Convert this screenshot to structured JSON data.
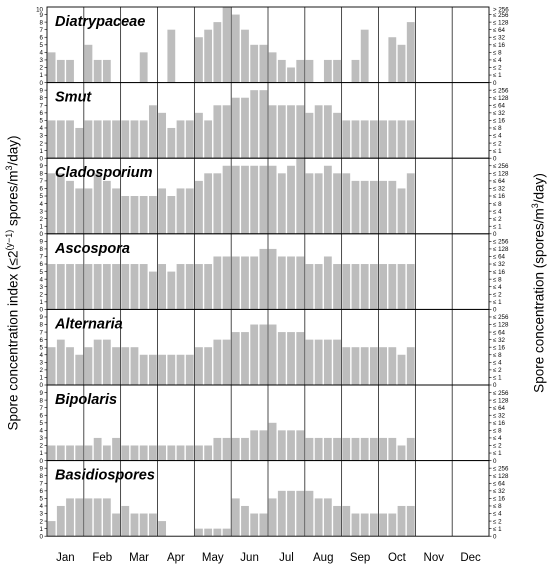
{
  "chart_data": {
    "type": "bar",
    "ylabel_left_parts": [
      "Spore concentration index (≤2",
      "(y−1)",
      " spores/m",
      "3",
      "/day)"
    ],
    "ylabel_right_parts": [
      "Spore concentration (spores/m",
      "3",
      "/day)"
    ],
    "months": [
      "Jan",
      "Feb",
      "Mar",
      "Apr",
      "May",
      "Jun",
      "Jul",
      "Aug",
      "Sep",
      "Oct",
      "Nov",
      "Dec"
    ],
    "left_ticks": [
      "0",
      "1",
      "2",
      "3",
      "4",
      "5",
      "6",
      "7",
      "8",
      "9"
    ],
    "left_tick_top": "10",
    "right_ticks": [
      "0",
      "≤ 1",
      "≤ 2",
      "≤ 4",
      "≤ 8",
      "≤ 16",
      "≤ 32",
      "≤ 64",
      "≤ 128",
      "≤ 256"
    ],
    "right_tick_top": "> 256",
    "ylim": [
      0,
      10
    ],
    "weeks_per_month": 4,
    "panels": [
      {
        "name": "Diatrypaceae",
        "values": [
          4,
          3,
          3,
          0,
          5,
          3,
          3,
          0,
          0,
          0,
          4,
          0,
          0,
          7,
          0,
          0,
          6,
          7,
          8,
          10,
          9,
          7,
          5,
          5,
          4,
          3,
          2,
          3,
          3,
          0,
          3,
          3,
          0,
          3,
          7,
          0,
          0,
          6,
          5,
          8
        ]
      },
      {
        "name": "Smut",
        "values": [
          5,
          5,
          5,
          4,
          5,
          5,
          5,
          5,
          5,
          5,
          5,
          7,
          6,
          4,
          5,
          5,
          6,
          5,
          7,
          7,
          8,
          8,
          9,
          9,
          7,
          7,
          7,
          7,
          6,
          7,
          7,
          6,
          5,
          5,
          5,
          5,
          5,
          5,
          5,
          5
        ]
      },
      {
        "name": "Cladosporium",
        "values": [
          8,
          8,
          7,
          6,
          6,
          8,
          7,
          6,
          5,
          5,
          5,
          5,
          6,
          5,
          6,
          6,
          7,
          8,
          8,
          9,
          9,
          9,
          9,
          9,
          9,
          8,
          9,
          10,
          8,
          8,
          9,
          8,
          8,
          7,
          7,
          7,
          7,
          7,
          6,
          8
        ]
      },
      {
        "name": "Ascospora",
        "values": [
          6,
          6,
          6,
          6,
          6,
          6,
          6,
          6,
          6,
          6,
          6,
          5,
          6,
          5,
          6,
          6,
          6,
          6,
          7,
          7,
          7,
          7,
          7,
          8,
          8,
          7,
          7,
          7,
          6,
          6,
          7,
          6,
          6,
          6,
          6,
          6,
          6,
          6,
          6,
          6
        ]
      },
      {
        "name": "Alternaria",
        "values": [
          5,
          6,
          5,
          4,
          5,
          6,
          6,
          5,
          5,
          5,
          4,
          4,
          4,
          4,
          4,
          4,
          5,
          5,
          6,
          6,
          7,
          7,
          8,
          8,
          8,
          7,
          7,
          7,
          6,
          6,
          6,
          6,
          5,
          5,
          5,
          5,
          5,
          5,
          4,
          5
        ]
      },
      {
        "name": "Bipolaris",
        "values": [
          2,
          2,
          2,
          2,
          2,
          3,
          2,
          3,
          2,
          2,
          2,
          2,
          2,
          2,
          2,
          2,
          2,
          2,
          3,
          3,
          3,
          3,
          4,
          4,
          5,
          4,
          4,
          4,
          3,
          3,
          3,
          3,
          3,
          3,
          3,
          3,
          3,
          3,
          2,
          3
        ]
      },
      {
        "name": "Basidiospores",
        "values": [
          2,
          4,
          5,
          5,
          5,
          5,
          5,
          3,
          4,
          3,
          3,
          3,
          2,
          0,
          0,
          0,
          1,
          1,
          1,
          1,
          5,
          4,
          3,
          3,
          5,
          6,
          6,
          6,
          6,
          5,
          5,
          4,
          4,
          3,
          3,
          3,
          3,
          3,
          4,
          4
        ]
      }
    ]
  }
}
